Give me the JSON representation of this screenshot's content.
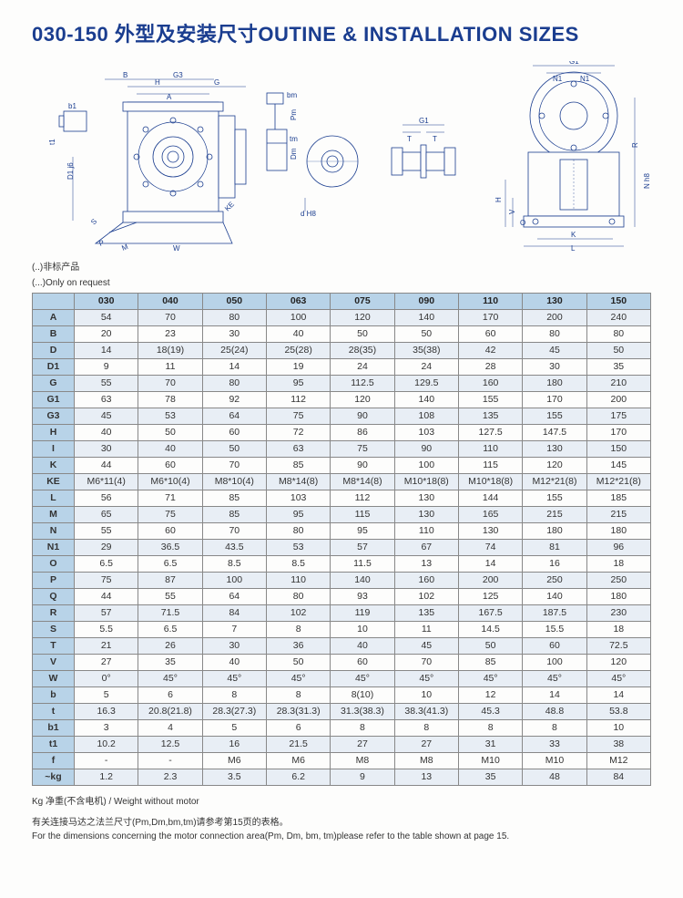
{
  "title": "030-150 外型及安装尺寸OUTINE & INSTALLATION SIZES",
  "note1": "(..)非标产品",
  "note2": "(...)Only on request",
  "footer1": "Kg 净重(不含电机) / Weight without motor",
  "footer2": "有关连接马达之法兰尺寸(Pm,Dm,bm,tm)请参考第15页的表格。",
  "footer3": "For the dimensions concerning the motor connection area(Pm, Dm, bm, tm)please refer to the table shown at page 15.",
  "diagram_labels": [
    "B",
    "G3",
    "H",
    "G",
    "A",
    "bm",
    "Pm",
    "tm",
    "Dm",
    "b1",
    "t1",
    "D1 j6",
    "P",
    "M",
    "W",
    "S",
    "KE",
    "d H8",
    "G1",
    "T",
    "T",
    "G1",
    "N1",
    "N1",
    "R",
    "H",
    "V",
    "O",
    "K",
    "L",
    "N h8"
  ],
  "table": {
    "columns": [
      "",
      "030",
      "040",
      "050",
      "063",
      "075",
      "090",
      "110",
      "130",
      "150"
    ],
    "rows": [
      {
        "k": "A",
        "v": [
          "54",
          "70",
          "80",
          "100",
          "120",
          "140",
          "170",
          "200",
          "240"
        ]
      },
      {
        "k": "B",
        "v": [
          "20",
          "23",
          "30",
          "40",
          "50",
          "50",
          "60",
          "80",
          "80"
        ]
      },
      {
        "k": "D",
        "v": [
          "14",
          "18(19)",
          "25(24)",
          "25(28)",
          "28(35)",
          "35(38)",
          "42",
          "45",
          "50"
        ]
      },
      {
        "k": "D1",
        "v": [
          "9",
          "11",
          "14",
          "19",
          "24",
          "24",
          "28",
          "30",
          "35"
        ]
      },
      {
        "k": "G",
        "v": [
          "55",
          "70",
          "80",
          "95",
          "112.5",
          "129.5",
          "160",
          "180",
          "210"
        ]
      },
      {
        "k": "G1",
        "v": [
          "63",
          "78",
          "92",
          "112",
          "120",
          "140",
          "155",
          "170",
          "200"
        ]
      },
      {
        "k": "G3",
        "v": [
          "45",
          "53",
          "64",
          "75",
          "90",
          "108",
          "135",
          "155",
          "175"
        ]
      },
      {
        "k": "H",
        "v": [
          "40",
          "50",
          "60",
          "72",
          "86",
          "103",
          "127.5",
          "147.5",
          "170"
        ]
      },
      {
        "k": "I",
        "v": [
          "30",
          "40",
          "50",
          "63",
          "75",
          "90",
          "110",
          "130",
          "150"
        ]
      },
      {
        "k": "K",
        "v": [
          "44",
          "60",
          "70",
          "85",
          "90",
          "100",
          "115",
          "120",
          "145"
        ]
      },
      {
        "k": "KE",
        "v": [
          "M6*11(4)",
          "M6*10(4)",
          "M8*10(4)",
          "M8*14(8)",
          "M8*14(8)",
          "M10*18(8)",
          "M10*18(8)",
          "M12*21(8)",
          "M12*21(8)"
        ]
      },
      {
        "k": "L",
        "v": [
          "56",
          "71",
          "85",
          "103",
          "112",
          "130",
          "144",
          "155",
          "185"
        ]
      },
      {
        "k": "M",
        "v": [
          "65",
          "75",
          "85",
          "95",
          "115",
          "130",
          "165",
          "215",
          "215"
        ]
      },
      {
        "k": "N",
        "v": [
          "55",
          "60",
          "70",
          "80",
          "95",
          "110",
          "130",
          "180",
          "180"
        ]
      },
      {
        "k": "N1",
        "v": [
          "29",
          "36.5",
          "43.5",
          "53",
          "57",
          "67",
          "74",
          "81",
          "96"
        ]
      },
      {
        "k": "O",
        "v": [
          "6.5",
          "6.5",
          "8.5",
          "8.5",
          "11.5",
          "13",
          "14",
          "16",
          "18"
        ]
      },
      {
        "k": "P",
        "v": [
          "75",
          "87",
          "100",
          "110",
          "140",
          "160",
          "200",
          "250",
          "250"
        ]
      },
      {
        "k": "Q",
        "v": [
          "44",
          "55",
          "64",
          "80",
          "93",
          "102",
          "125",
          "140",
          "180"
        ]
      },
      {
        "k": "R",
        "v": [
          "57",
          "71.5",
          "84",
          "102",
          "119",
          "135",
          "167.5",
          "187.5",
          "230"
        ]
      },
      {
        "k": "S",
        "v": [
          "5.5",
          "6.5",
          "7",
          "8",
          "10",
          "11",
          "14.5",
          "15.5",
          "18"
        ]
      },
      {
        "k": "T",
        "v": [
          "21",
          "26",
          "30",
          "36",
          "40",
          "45",
          "50",
          "60",
          "72.5"
        ]
      },
      {
        "k": "V",
        "v": [
          "27",
          "35",
          "40",
          "50",
          "60",
          "70",
          "85",
          "100",
          "120"
        ]
      },
      {
        "k": "W",
        "v": [
          "0°",
          "45°",
          "45°",
          "45°",
          "45°",
          "45°",
          "45°",
          "45°",
          "45°"
        ]
      },
      {
        "k": "b",
        "v": [
          "5",
          "6",
          "8",
          "8",
          "8(10)",
          "10",
          "12",
          "14",
          "14"
        ]
      },
      {
        "k": "t",
        "v": [
          "16.3",
          "20.8(21.8)",
          "28.3(27.3)",
          "28.3(31.3)",
          "31.3(38.3)",
          "38.3(41.3)",
          "45.3",
          "48.8",
          "53.8"
        ]
      },
      {
        "k": "b1",
        "v": [
          "3",
          "4",
          "5",
          "6",
          "8",
          "8",
          "8",
          "8",
          "10"
        ]
      },
      {
        "k": "t1",
        "v": [
          "10.2",
          "12.5",
          "16",
          "21.5",
          "27",
          "27",
          "31",
          "33",
          "38"
        ]
      },
      {
        "k": "f",
        "v": [
          "-",
          "-",
          "M6",
          "M6",
          "M8",
          "M8",
          "M10",
          "M10",
          "M12"
        ]
      },
      {
        "k": "~kg",
        "v": [
          "1.2",
          "2.3",
          "3.5",
          "6.2",
          "9",
          "13",
          "35",
          "48",
          "84"
        ]
      }
    ],
    "header_bg": "#b8d3e8",
    "shade_bg": "#e8eef5",
    "border_color": "#888888",
    "font_size": 10.5
  }
}
